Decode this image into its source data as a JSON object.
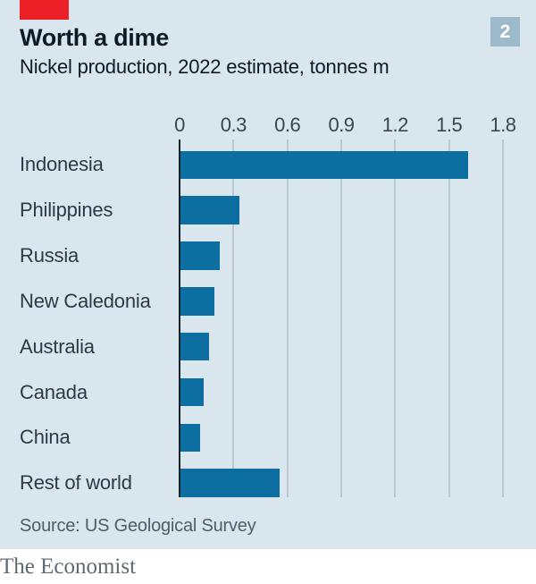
{
  "header": {
    "title": "Worth a dime",
    "subtitle": "Nickel production, 2022 estimate, tonnes m",
    "badge_number": "2",
    "brand_tab_color": "#ec2127",
    "badge_color": "#9dbaca"
  },
  "chart_data": {
    "type": "bar",
    "orientation": "horizontal",
    "title": "Worth a dime",
    "subtitle": "Nickel production, 2022 estimate, tonnes m",
    "categories": [
      "Indonesia",
      "Philippines",
      "Russia",
      "New Caledonia",
      "Australia",
      "Canada",
      "China",
      "Rest of world"
    ],
    "values": [
      1.6,
      0.33,
      0.22,
      0.19,
      0.16,
      0.13,
      0.11,
      0.55
    ],
    "xlabel": "",
    "ylabel": "",
    "xlim": [
      0,
      1.8
    ],
    "x_ticks": [
      0,
      0.3,
      0.6,
      0.9,
      1.2,
      1.5,
      1.8
    ],
    "x_tick_labels": [
      "0",
      "0.3",
      "0.6",
      "0.9",
      "1.2",
      "1.5",
      "1.8"
    ],
    "grid": true,
    "legend": false,
    "bar_color": "#0d6ea1",
    "gridline_color": "#bac8cf",
    "background_color": "#d9e6ed"
  },
  "source": "Source: US Geological Survey",
  "footer": {
    "brand": "The Economist"
  }
}
